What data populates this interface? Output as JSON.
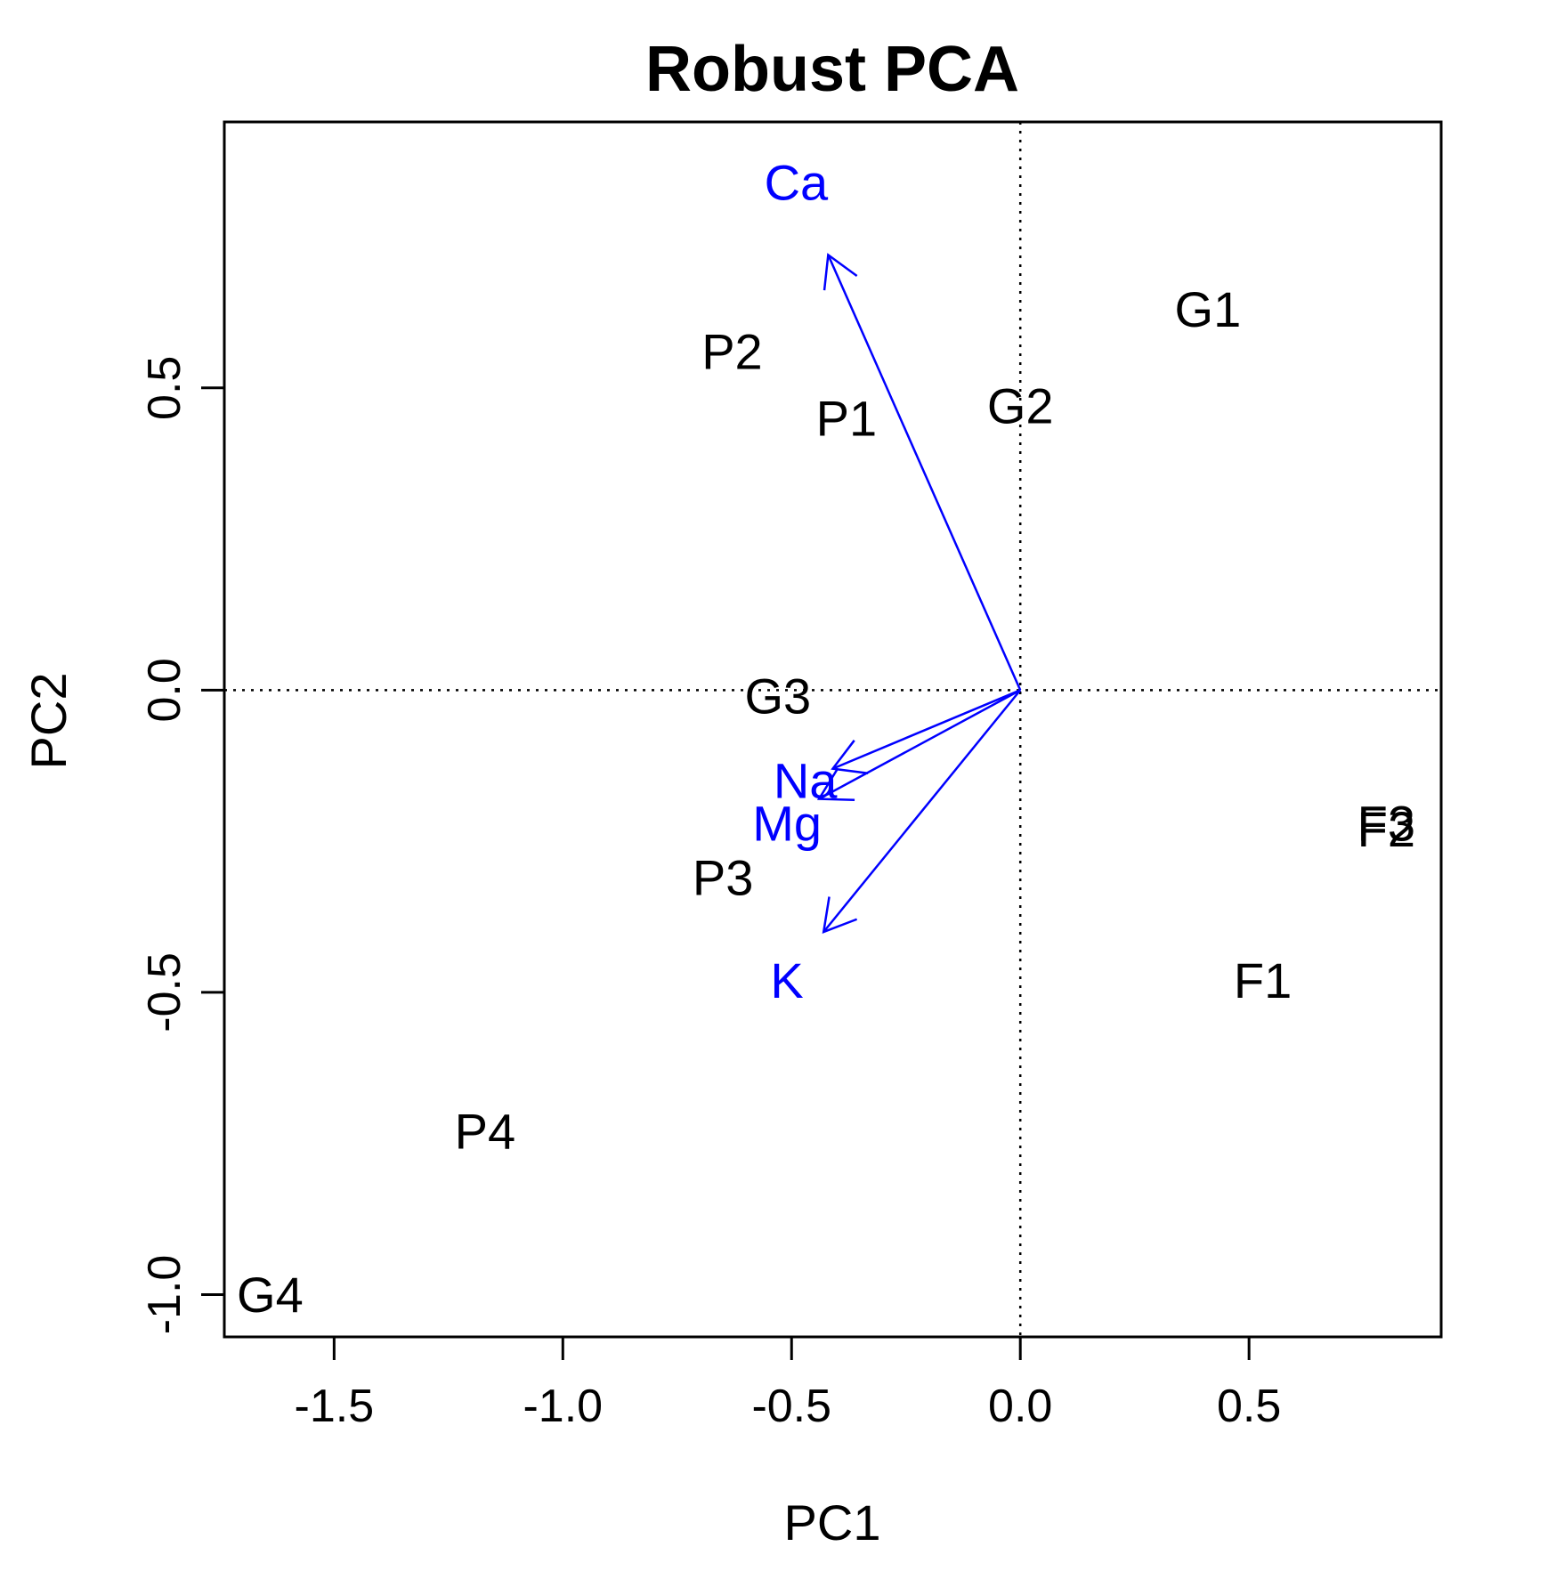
{
  "chart_data": {
    "type": "scatter",
    "title": "Robust PCA",
    "xlabel": "PC1",
    "ylabel": "PC2",
    "xlim": [
      -1.74,
      0.92
    ],
    "ylim": [
      -1.07,
      0.94
    ],
    "x_ticks": [
      -1.5,
      -1.0,
      -0.5,
      0.0,
      0.5
    ],
    "x_tick_labels": [
      "-1.5",
      "-1.0",
      "-0.5",
      "0.0",
      "0.5"
    ],
    "y_ticks": [
      -1.0,
      -0.5,
      0.0,
      0.5
    ],
    "y_tick_labels": [
      "-1.0",
      "-0.5",
      "0.0",
      "0.5"
    ],
    "reference_lines": {
      "x": 0,
      "y": 0,
      "style": "dotted"
    },
    "grid": false,
    "points": [
      {
        "label": "P2",
        "x": -0.63,
        "y": 0.56
      },
      {
        "label": "P1",
        "x": -0.38,
        "y": 0.45
      },
      {
        "label": "G2",
        "x": 0.0,
        "y": 0.47
      },
      {
        "label": "G1",
        "x": 0.41,
        "y": 0.63
      },
      {
        "label": "G3",
        "x": -0.53,
        "y": -0.01
      },
      {
        "label": "P3",
        "x": -0.65,
        "y": -0.31
      },
      {
        "label": "F1",
        "x": 0.53,
        "y": -0.48
      },
      {
        "label": "F3",
        "x": 0.8,
        "y": -0.22
      },
      {
        "label": "F2",
        "x": 0.8,
        "y": -0.23
      },
      {
        "label": "P4",
        "x": -1.17,
        "y": -0.73
      },
      {
        "label": "G4",
        "x": -1.64,
        "y": -1.0
      }
    ],
    "loadings": {
      "color": "#0000ff",
      "arrows": [
        {
          "label": "Ca",
          "x": -0.42,
          "y": 0.72,
          "label_x": -0.49,
          "label_y": 0.84
        },
        {
          "label": "Na",
          "x": -0.41,
          "y": -0.13,
          "label_x": -0.47,
          "label_y": -0.15
        },
        {
          "label": "Mg",
          "x": -0.44,
          "y": -0.18,
          "label_x": -0.51,
          "label_y": -0.22
        },
        {
          "label": "K",
          "x": -0.43,
          "y": -0.4,
          "label_x": -0.51,
          "label_y": -0.48
        }
      ]
    }
  }
}
